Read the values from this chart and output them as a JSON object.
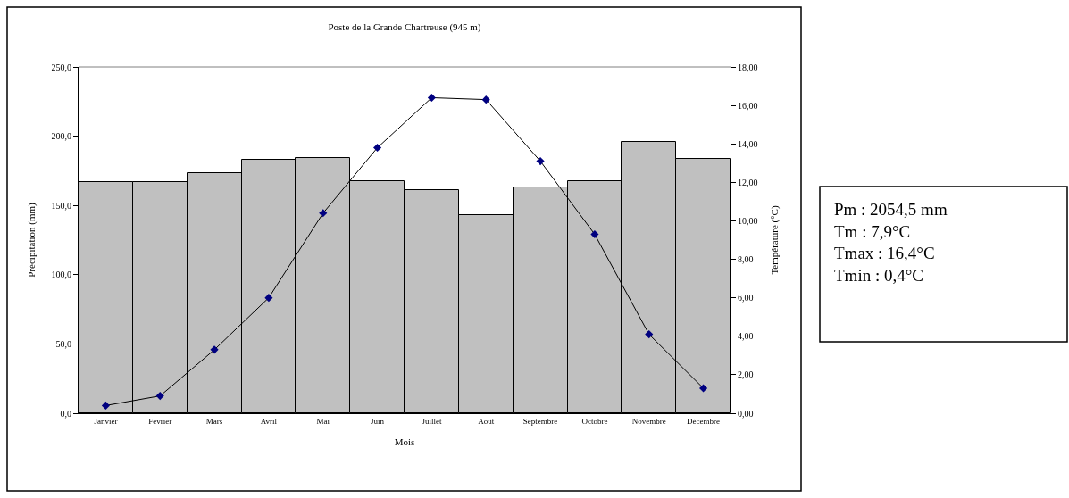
{
  "chart_data": {
    "type": "bar",
    "title": "Poste de la Grande Chartreuse (945 m)",
    "xlabel": "Mois",
    "ylabel": "Précipitation (mm)",
    "y2label": "Température (°C)",
    "categories": [
      "Janvier",
      "Février",
      "Mars",
      "Avril",
      "Mai",
      "Juin",
      "Juillet",
      "Août",
      "Septembre",
      "Octobre",
      "Novembre",
      "Décembre"
    ],
    "series": [
      {
        "color": "#c0c0c0",
        "values": [
          166.6,
          166.6,
          173.3,
          183.0,
          184.3,
          167.5,
          161.0,
          143.0,
          162.8,
          167.6,
          195.6,
          183.9
        ]
      },
      {
        "type": "line",
        "axis": "y2",
        "color": "#000080",
        "marker": "diamond",
        "values": [
          0.4,
          0.9,
          3.3,
          6.0,
          10.4,
          13.8,
          16.4,
          16.3,
          13.1,
          9.3,
          4.1,
          1.3
        ]
      }
    ],
    "ylim": [
      0,
      250
    ],
    "yticks": [
      {
        "value": 0,
        "label": "0,0"
      },
      {
        "value": 50,
        "label": "50,0"
      },
      {
        "value": 100,
        "label": "100,0"
      },
      {
        "value": 150,
        "label": "150,0"
      },
      {
        "value": 200,
        "label": "200,0"
      },
      {
        "value": 250,
        "label": "250,0"
      }
    ],
    "y2lim": [
      0,
      18
    ],
    "y2ticks": [
      {
        "value": 0,
        "label": "0,00"
      },
      {
        "value": 2,
        "label": "2,00"
      },
      {
        "value": 4,
        "label": "4,00"
      },
      {
        "value": 6,
        "label": "6,00"
      },
      {
        "value": 8,
        "label": "8,00"
      },
      {
        "value": 10,
        "label": "10,00"
      },
      {
        "value": 12,
        "label": "12,00"
      },
      {
        "value": 14,
        "label": "14,00"
      },
      {
        "value": 16,
        "label": "16,00"
      },
      {
        "value": 18,
        "label": "18,00"
      }
    ],
    "annotations": [
      "Pm : 2054,5 mm",
      "Tm : 7,9°C",
      "Tmax : 16,4°C",
      "Tmin : 0,4°C"
    ]
  }
}
